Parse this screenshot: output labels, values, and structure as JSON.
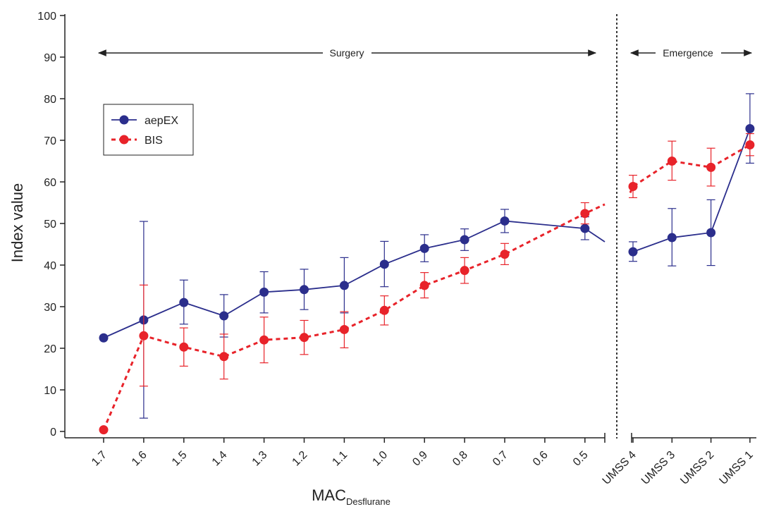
{
  "chart_data": {
    "type": "line",
    "title": "",
    "ylabel": "Index value",
    "xlabel": "MAC",
    "xlabel_subscript": "Desflurane",
    "ylim": [
      0,
      100
    ],
    "yticks": [
      0,
      10,
      20,
      30,
      40,
      50,
      60,
      70,
      80,
      90,
      100
    ],
    "grid": false,
    "legend_position": "upper-left",
    "panels": [
      {
        "name": "Surgery",
        "categories": [
          "1.7",
          "1.6",
          "1.5",
          "1.4",
          "1.3",
          "1.2",
          "1.1",
          "1.0",
          "0.9",
          "0.8",
          "0.7",
          "0.6",
          "0.5"
        ]
      },
      {
        "name": "Emergence",
        "categories": [
          "UMSS 4",
          "UMSS 3",
          "UMSS 2",
          "UMSS 1"
        ]
      }
    ],
    "series": [
      {
        "name": "aepEX",
        "color": "#2b2e8c",
        "line_style": "solid",
        "marker": "circle",
        "surgery": [
          {
            "x": "1.7",
            "y": 22.5,
            "low": null,
            "high": null
          },
          {
            "x": "1.6",
            "y": 26.8,
            "low": 3.2,
            "high": 50.5
          },
          {
            "x": "1.5",
            "y": 31.0,
            "low": 25.8,
            "high": 36.4
          },
          {
            "x": "1.4",
            "y": 27.8,
            "low": 22.7,
            "high": 32.9
          },
          {
            "x": "1.3",
            "y": 33.5,
            "low": 28.5,
            "high": 38.4
          },
          {
            "x": "1.2",
            "y": 34.1,
            "low": 29.3,
            "high": 39.0
          },
          {
            "x": "1.1",
            "y": 35.1,
            "low": 28.5,
            "high": 41.8
          },
          {
            "x": "1.0",
            "y": 40.2,
            "low": 34.8,
            "high": 45.7
          },
          {
            "x": "0.9",
            "y": 44.0,
            "low": 40.8,
            "high": 47.3
          },
          {
            "x": "0.8",
            "y": 46.1,
            "low": 43.5,
            "high": 48.7
          },
          {
            "x": "0.7",
            "y": 50.6,
            "low": 47.8,
            "high": 53.4
          },
          {
            "x": "0.5",
            "y": 48.8,
            "low": 46.1,
            "high": 51.6
          }
        ],
        "surgery_tail_end": 45.6,
        "emergence": [
          {
            "x": "UMSS 4",
            "y": 43.2,
            "low": 40.9,
            "high": 45.6
          },
          {
            "x": "UMSS 3",
            "y": 46.6,
            "low": 39.8,
            "high": 53.6
          },
          {
            "x": "UMSS 2",
            "y": 47.8,
            "low": 39.9,
            "high": 55.7
          },
          {
            "x": "UMSS 1",
            "y": 72.8,
            "low": 64.5,
            "high": 81.2
          }
        ]
      },
      {
        "name": "BIS",
        "color": "#e8232a",
        "line_style": "dashed",
        "marker": "circle",
        "surgery": [
          {
            "x": "1.7",
            "y": 0.4,
            "low": null,
            "high": null
          },
          {
            "x": "1.6",
            "y": 23.0,
            "low": 10.9,
            "high": 35.2
          },
          {
            "x": "1.5",
            "y": 20.3,
            "low": 15.7,
            "high": 24.9
          },
          {
            "x": "1.4",
            "y": 18.0,
            "low": 12.6,
            "high": 23.4
          },
          {
            "x": "1.3",
            "y": 22.0,
            "low": 16.5,
            "high": 27.5
          },
          {
            "x": "1.2",
            "y": 22.6,
            "low": 18.5,
            "high": 26.7
          },
          {
            "x": "1.1",
            "y": 24.5,
            "low": 20.1,
            "high": 28.8
          },
          {
            "x": "1.0",
            "y": 29.1,
            "low": 25.6,
            "high": 32.6
          },
          {
            "x": "0.9",
            "y": 35.1,
            "low": 32.1,
            "high": 38.2
          },
          {
            "x": "0.8",
            "y": 38.7,
            "low": 35.6,
            "high": 41.8
          },
          {
            "x": "0.7",
            "y": 42.6,
            "low": 40.1,
            "high": 45.2
          },
          {
            "x": "0.5",
            "y": 52.4,
            "low": 49.9,
            "high": 55.0
          }
        ],
        "surgery_tail_end": 54.6,
        "emergence_head_start": 57.4,
        "emergence": [
          {
            "x": "UMSS 4",
            "y": 58.9,
            "low": 56.2,
            "high": 61.6
          },
          {
            "x": "UMSS 3",
            "y": 65.0,
            "low": 60.4,
            "high": 69.8
          },
          {
            "x": "UMSS 2",
            "y": 63.5,
            "low": 59.0,
            "high": 68.1
          },
          {
            "x": "UMSS 1",
            "y": 68.9,
            "low": 66.3,
            "high": 71.6
          }
        ]
      }
    ],
    "annotations": [
      {
        "text": "Surgery",
        "type": "double-arrow",
        "level": 91
      },
      {
        "text": "Emergence",
        "type": "double-arrow",
        "level": 91
      }
    ]
  }
}
